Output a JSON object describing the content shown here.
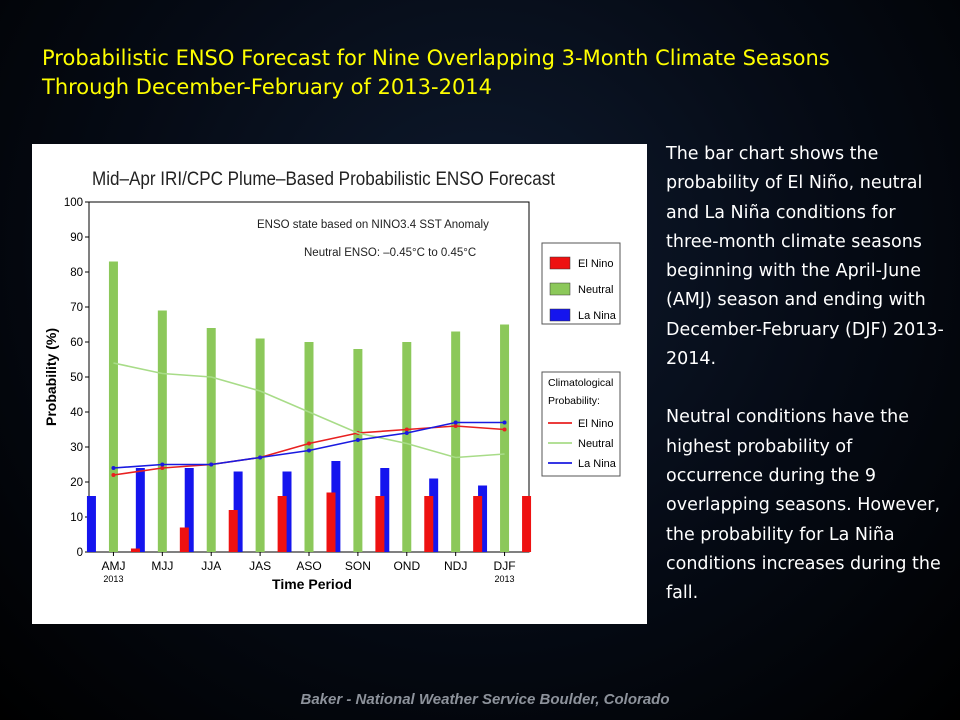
{
  "slide": {
    "title_line1": "Probabilistic ENSO Forecast for Nine Overlapping 3-Month Climate Seasons",
    "title_line2": "Through December-February of 2013-2014",
    "paragraph1": "The bar chart shows the probability of El Niño, neutral and La Niña conditions for three-month climate seasons beginning with the April-June (AMJ) season and ending with December-February (DJF) 2013-2014.",
    "paragraph2": "Neutral conditions have the highest probability of occurrence during the 9 overlapping seasons. However, the probability for La Niña conditions increases during the fall.",
    "footer": "Baker - National Weather Service Boulder, Colorado"
  },
  "colors": {
    "el_nino_bar": "#ee1111",
    "neutral_bar": "#8cc85a",
    "la_nina_bar": "#1515ee",
    "el_nino_line": "#e82020",
    "neutral_line": "#a8dc88",
    "la_nina_line": "#1a1ae0"
  },
  "chart_data": {
    "type": "bar",
    "title": "Mid–Apr IRI/CPC Plume–Based Probabilistic ENSO Forecast",
    "xlabel": "Time Period",
    "ylabel": "Probability (%)",
    "ylim": [
      0,
      100
    ],
    "yticks": [
      0,
      10,
      20,
      30,
      40,
      50,
      60,
      70,
      80,
      90,
      100
    ],
    "categories": [
      "AMJ",
      "MJJ",
      "JJA",
      "JAS",
      "ASO",
      "SON",
      "OND",
      "NDJ",
      "DJF"
    ],
    "category_sublabels": [
      "2013",
      "",
      "",
      "",
      "",
      "",
      "",
      "",
      "2013"
    ],
    "annotations": [
      "ENSO state based on NINO3.4 SST Anomaly",
      "Neutral ENSO: –0.45°C to 0.45°C"
    ],
    "series": [
      {
        "name": "La Nina",
        "values": [
          16,
          24,
          24,
          23,
          23,
          26,
          24,
          21,
          19
        ]
      },
      {
        "name": "Neutral",
        "values": [
          83,
          69,
          64,
          61,
          60,
          58,
          60,
          63,
          65
        ]
      },
      {
        "name": "El Nino",
        "values": [
          1,
          7,
          12,
          16,
          17,
          16,
          16,
          16,
          16
        ]
      }
    ],
    "legend_order": [
      "El Nino",
      "Neutral",
      "La Nina"
    ],
    "climatology": {
      "legend_title": "Climatological Probability:",
      "series": [
        {
          "name": "El Nino",
          "values": [
            22,
            24,
            25,
            27,
            31,
            34,
            35,
            36,
            35
          ]
        },
        {
          "name": "Neutral",
          "values": [
            54,
            51,
            50,
            46,
            40,
            34,
            31,
            27,
            28
          ]
        },
        {
          "name": "La Nina",
          "values": [
            24,
            25,
            25,
            27,
            29,
            32,
            34,
            37,
            37
          ]
        }
      ]
    },
    "grid": false,
    "legend_position": "right"
  }
}
